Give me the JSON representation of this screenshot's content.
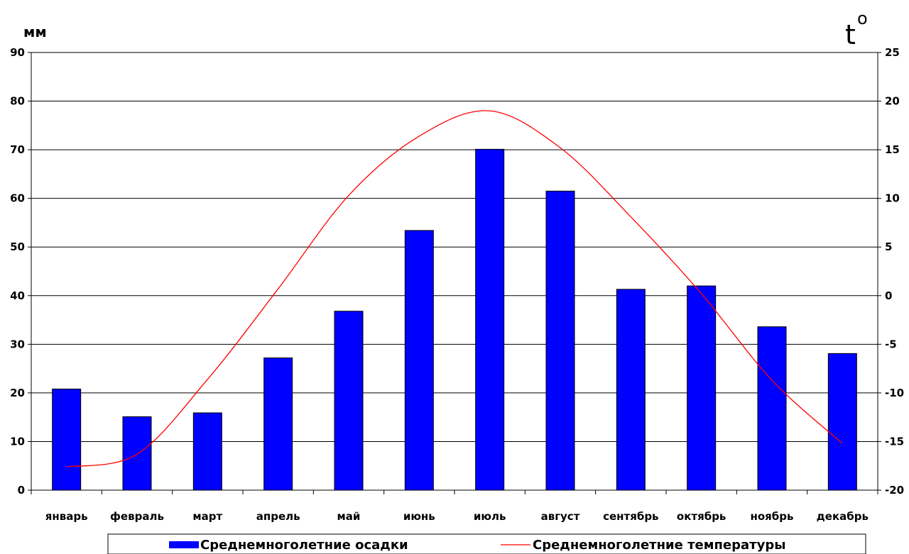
{
  "chart_data": {
    "type": "bar+line",
    "categories": [
      "январь",
      "февраль",
      "март",
      "апрель",
      "май",
      "июнь",
      "июль",
      "август",
      "сентябрь",
      "октябрь",
      "ноябрь",
      "декабрь"
    ],
    "series": [
      {
        "name": "Среднемноголетние осадки",
        "type": "bar",
        "axis": "left",
        "color": "#0000ff",
        "values": [
          20.8,
          15.1,
          15.9,
          27.2,
          36.8,
          53.4,
          70.1,
          61.5,
          41.3,
          42.0,
          33.6,
          28.1
        ]
      },
      {
        "name": "Среднемноголетние температуры",
        "type": "line",
        "axis": "right",
        "color": "#ff0000",
        "values": [
          -17.6,
          -16.3,
          -8.6,
          0.7,
          10.3,
          16.4,
          19.0,
          15.2,
          8.1,
          0.2,
          -8.7,
          -15.2
        ]
      }
    ],
    "y_left": {
      "label": "мм",
      "ylim": [
        0,
        90
      ],
      "ticks": [
        0,
        10,
        20,
        30,
        40,
        50,
        60,
        70,
        80,
        90
      ]
    },
    "y_right": {
      "label": "t",
      "label_sup": "o",
      "ylim": [
        -20,
        25
      ],
      "ticks": [
        -20,
        -15,
        -10,
        -5,
        0,
        5,
        10,
        15,
        20,
        25
      ]
    },
    "grid": true,
    "legend": "bottom"
  }
}
